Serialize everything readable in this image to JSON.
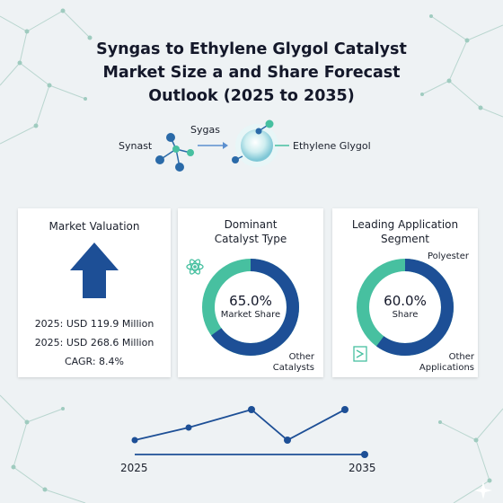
{
  "title": {
    "line1": "Syngas to Ethylene Glygol Catalyst",
    "line2": "Market Size a and Share Forecast",
    "line3": "Outlook (2025 to 2035)"
  },
  "process": {
    "input_label": "Synast",
    "top_label": "Sygas",
    "output_label": "Ethylene Glygol"
  },
  "cards": {
    "valuation": {
      "title": "Market Valuation",
      "stats": [
        "2025: USD 119.9 Million",
        "2025: USD 268.6 Million",
        "CAGR: 8.4%"
      ]
    },
    "catalyst": {
      "title_line1": "Dominant",
      "title_line2": "Catalyst Type",
      "percent": "65.0%",
      "sub": "Market Share",
      "share": 0.65,
      "other_line1": "Other",
      "other_line2": "Catalysts"
    },
    "application": {
      "title_line1": "Leading Application",
      "title_line2": "Segment",
      "percent": "60.0%",
      "sub": "Share",
      "share": 0.6,
      "segment_label": "Polyester",
      "other_line1": "Other",
      "other_line2": "Applications"
    }
  },
  "trend": {
    "start_year": "2025",
    "end_year": "2035"
  },
  "colors": {
    "navy": "#1d4f96",
    "teal": "#47c0a0",
    "background": "#eef2f4"
  },
  "icons": [
    "atom-icon",
    "ticket-icon",
    "up-arrow-icon"
  ]
}
